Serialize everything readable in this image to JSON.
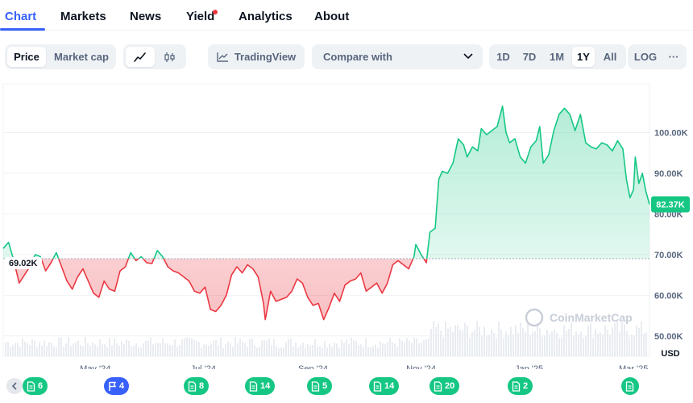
{
  "tabs": [
    {
      "label": "Chart"
    },
    {
      "label": "Markets"
    },
    {
      "label": "News"
    },
    {
      "label": "Yield"
    },
    {
      "label": "Analytics"
    },
    {
      "label": "About"
    }
  ],
  "toolbar": {
    "price_label": "Price",
    "market_cap_label": "Market cap",
    "tradingview_label": "TradingView",
    "compare_label": "Compare with",
    "ranges": [
      "1D",
      "7D",
      "1M",
      "1Y",
      "All"
    ],
    "selected_range": "1Y",
    "log_label": "LOG",
    "more_label": "···"
  },
  "chart_data": {
    "type": "area",
    "currency": "USD",
    "baseline": 69020,
    "baseline_label": "69.02K",
    "current_label": "82.37K",
    "y_ticks": [
      "100.00K",
      "90.00K",
      "80.00K",
      "70.00K",
      "60.00K",
      "50.00K"
    ],
    "y_tick_values": [
      100000,
      90000,
      80000,
      70000,
      60000,
      50000
    ],
    "ylim": [
      45000,
      112000
    ],
    "x_labels": [
      "May '24",
      "Jul '24",
      "Sep '24",
      "Nov '24",
      "Jan '25",
      "Mar '25"
    ],
    "x_label_dates": [
      "2024-05-01",
      "2024-07-01",
      "2024-09-01",
      "2024-11-01",
      "2025-01-01",
      "2025-03-01"
    ],
    "xlim": [
      "2024-03-10",
      "2025-03-10"
    ],
    "watermark": "CoinMarketCap",
    "colors": {
      "up": "#16c784",
      "down": "#ea3943",
      "up_fill": "#16c784",
      "down_fill": "#ea3943"
    },
    "points": [
      [
        "2024-03-10",
        71500
      ],
      [
        "2024-03-13",
        73000
      ],
      [
        "2024-03-16",
        68500
      ],
      [
        "2024-03-19",
        63000
      ],
      [
        "2024-03-22",
        65000
      ],
      [
        "2024-03-25",
        67000
      ],
      [
        "2024-03-28",
        70000
      ],
      [
        "2024-03-31",
        69500
      ],
      [
        "2024-04-03",
        66000
      ],
      [
        "2024-04-06",
        68000
      ],
      [
        "2024-04-09",
        70500
      ],
      [
        "2024-04-12",
        67000
      ],
      [
        "2024-04-15",
        63500
      ],
      [
        "2024-04-18",
        61500
      ],
      [
        "2024-04-21",
        64500
      ],
      [
        "2024-04-24",
        66500
      ],
      [
        "2024-04-27",
        63500
      ],
      [
        "2024-04-30",
        60500
      ],
      [
        "2024-05-03",
        59500
      ],
      [
        "2024-05-06",
        63500
      ],
      [
        "2024-05-09",
        61500
      ],
      [
        "2024-05-12",
        61000
      ],
      [
        "2024-05-15",
        66000
      ],
      [
        "2024-05-18",
        67000
      ],
      [
        "2024-05-21",
        70500
      ],
      [
        "2024-05-24",
        68500
      ],
      [
        "2024-05-27",
        69500
      ],
      [
        "2024-05-30",
        68000
      ],
      [
        "2024-06-02",
        67800
      ],
      [
        "2024-06-05",
        71000
      ],
      [
        "2024-06-08",
        69500
      ],
      [
        "2024-06-11",
        67000
      ],
      [
        "2024-06-14",
        66000
      ],
      [
        "2024-06-17",
        65500
      ],
      [
        "2024-06-20",
        64500
      ],
      [
        "2024-06-23",
        63500
      ],
      [
        "2024-06-26",
        61000
      ],
      [
        "2024-06-29",
        60500
      ],
      [
        "2024-07-02",
        62000
      ],
      [
        "2024-07-05",
        56500
      ],
      [
        "2024-07-08",
        56000
      ],
      [
        "2024-07-11",
        57500
      ],
      [
        "2024-07-14",
        60000
      ],
      [
        "2024-07-17",
        65000
      ],
      [
        "2024-07-20",
        67000
      ],
      [
        "2024-07-23",
        65500
      ],
      [
        "2024-07-26",
        67500
      ],
      [
        "2024-07-29",
        66500
      ],
      [
        "2024-08-01",
        64500
      ],
      [
        "2024-08-04",
        58000
      ],
      [
        "2024-08-05",
        54000
      ],
      [
        "2024-08-08",
        61000
      ],
      [
        "2024-08-11",
        58500
      ],
      [
        "2024-08-14",
        59000
      ],
      [
        "2024-08-17",
        59500
      ],
      [
        "2024-08-20",
        61000
      ],
      [
        "2024-08-23",
        64000
      ],
      [
        "2024-08-26",
        63000
      ],
      [
        "2024-08-29",
        59500
      ],
      [
        "2024-09-01",
        57500
      ],
      [
        "2024-09-04",
        58000
      ],
      [
        "2024-09-07",
        54000
      ],
      [
        "2024-09-10",
        57000
      ],
      [
        "2024-09-13",
        60500
      ],
      [
        "2024-09-16",
        58500
      ],
      [
        "2024-09-19",
        62500
      ],
      [
        "2024-09-22",
        63500
      ],
      [
        "2024-09-25",
        64000
      ],
      [
        "2024-09-28",
        65500
      ],
      [
        "2024-10-01",
        61000
      ],
      [
        "2024-10-04",
        62000
      ],
      [
        "2024-10-07",
        63000
      ],
      [
        "2024-10-10",
        60500
      ],
      [
        "2024-10-13",
        63000
      ],
      [
        "2024-10-16",
        67500
      ],
      [
        "2024-10-19",
        68500
      ],
      [
        "2024-10-22",
        67500
      ],
      [
        "2024-10-25",
        66500
      ],
      [
        "2024-10-28",
        69500
      ],
      [
        "2024-10-29",
        72500
      ],
      [
        "2024-11-01",
        70000
      ],
      [
        "2024-11-04",
        68000
      ],
      [
        "2024-11-06",
        75500
      ],
      [
        "2024-11-09",
        76500
      ],
      [
        "2024-11-11",
        88500
      ],
      [
        "2024-11-13",
        90500
      ],
      [
        "2024-11-16",
        90000
      ],
      [
        "2024-11-19",
        92500
      ],
      [
        "2024-11-22",
        98500
      ],
      [
        "2024-11-25",
        97000
      ],
      [
        "2024-11-27",
        94000
      ],
      [
        "2024-11-30",
        96500
      ],
      [
        "2024-12-03",
        95500
      ],
      [
        "2024-12-05",
        101000
      ],
      [
        "2024-12-08",
        99500
      ],
      [
        "2024-12-11",
        100500
      ],
      [
        "2024-12-14",
        101500
      ],
      [
        "2024-12-17",
        106500
      ],
      [
        "2024-12-19",
        100000
      ],
      [
        "2024-12-21",
        97500
      ],
      [
        "2024-12-24",
        98500
      ],
      [
        "2024-12-27",
        94000
      ],
      [
        "2024-12-30",
        92500
      ],
      [
        "2025-01-02",
        96500
      ],
      [
        "2025-01-05",
        98000
      ],
      [
        "2025-01-07",
        101500
      ],
      [
        "2025-01-09",
        92500
      ],
      [
        "2025-01-12",
        94500
      ],
      [
        "2025-01-15",
        100500
      ],
      [
        "2025-01-18",
        104500
      ],
      [
        "2025-01-21",
        106000
      ],
      [
        "2025-01-24",
        104500
      ],
      [
        "2025-01-27",
        100500
      ],
      [
        "2025-01-30",
        104500
      ],
      [
        "2025-02-02",
        97500
      ],
      [
        "2025-02-05",
        96500
      ],
      [
        "2025-02-08",
        96000
      ],
      [
        "2025-02-11",
        97500
      ],
      [
        "2025-02-14",
        97000
      ],
      [
        "2025-02-17",
        95500
      ],
      [
        "2025-02-20",
        98000
      ],
      [
        "2025-02-23",
        96000
      ],
      [
        "2025-02-25",
        88500
      ],
      [
        "2025-02-27",
        84000
      ],
      [
        "2025-03-01",
        86000
      ],
      [
        "2025-03-02",
        94000
      ],
      [
        "2025-03-04",
        87500
      ],
      [
        "2025-03-06",
        90000
      ],
      [
        "2025-03-08",
        85500
      ],
      [
        "2025-03-10",
        82370
      ]
    ]
  },
  "events": [
    {
      "label": "6",
      "kind": "news",
      "color": "#16c784"
    },
    {
      "label": "4",
      "kind": "flag",
      "color": "#3861fb"
    },
    {
      "label": "8",
      "kind": "news",
      "color": "#16c784"
    },
    {
      "label": "14",
      "kind": "news",
      "color": "#16c784"
    },
    {
      "label": "5",
      "kind": "news",
      "color": "#16c784"
    },
    {
      "label": "14",
      "kind": "news",
      "color": "#16c784"
    },
    {
      "label": "20",
      "kind": "news",
      "color": "#16c784"
    },
    {
      "label": "2",
      "kind": "news",
      "color": "#16c784"
    },
    {
      "label": "",
      "kind": "news",
      "color": "#16c784"
    }
  ]
}
